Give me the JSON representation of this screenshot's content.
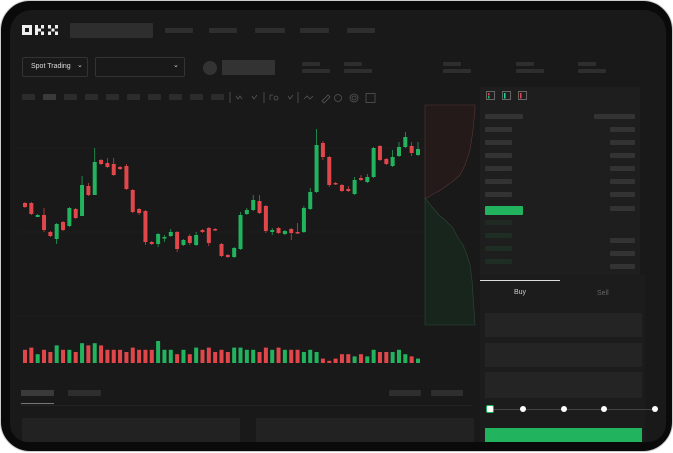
{
  "header": {
    "logo": "OKX"
  },
  "market_bar": {
    "mode_selector": "Spot Trading",
    "mode_chevron": "⌄",
    "pair_chevron": "⌄"
  },
  "orderbook": {
    "view_icons": [
      "both-sides-icon",
      "bids-only-icon",
      "asks-only-icon"
    ]
  },
  "trade_form": {
    "tabs": [
      {
        "label": "Buy",
        "active": true
      },
      {
        "label": "Sell",
        "active": false
      }
    ],
    "slider_percent": 0,
    "submit_color": "#22b35e"
  },
  "colors": {
    "up": "#22b35e",
    "down": "#e0474b",
    "background": "#191919"
  },
  "chart_data": {
    "type": "candlestick",
    "title": "",
    "ylim": [
      -30,
      195
    ],
    "grid": true,
    "candles": [
      [
        97,
        98,
        92,
        93
      ],
      [
        97,
        98,
        85,
        86
      ],
      [
        83,
        86,
        83,
        85
      ],
      [
        85,
        92,
        68,
        70
      ],
      [
        68,
        69,
        63,
        64
      ],
      [
        61,
        77,
        56,
        76
      ],
      [
        78,
        79,
        69,
        70
      ],
      [
        74,
        93,
        73,
        92
      ],
      [
        91,
        92,
        81,
        82
      ],
      [
        84,
        124,
        84,
        115
      ],
      [
        114,
        117,
        104,
        105
      ],
      [
        105,
        152,
        105,
        138
      ],
      [
        140,
        141,
        135,
        136
      ],
      [
        137,
        142,
        132,
        133
      ],
      [
        136,
        142,
        124,
        125
      ],
      [
        133,
        134,
        130,
        131
      ],
      [
        134,
        136,
        110,
        111
      ],
      [
        110,
        111,
        87,
        88
      ],
      [
        91,
        92,
        85,
        87
      ],
      [
        89,
        90,
        55,
        58
      ],
      [
        58,
        59,
        55,
        56
      ],
      [
        56,
        67,
        53,
        66
      ],
      [
        62,
        65,
        58,
        63
      ],
      [
        64,
        71,
        63,
        68
      ],
      [
        68,
        69,
        48,
        51
      ],
      [
        55,
        61,
        54,
        60
      ],
      [
        64,
        66,
        55,
        57
      ],
      [
        55,
        68,
        54,
        65
      ],
      [
        70,
        71,
        67,
        68
      ],
      [
        72,
        73,
        54,
        57
      ],
      [
        71,
        72,
        69,
        70
      ],
      [
        56,
        57,
        43,
        44
      ],
      [
        45,
        46,
        42,
        43
      ],
      [
        43,
        53,
        42,
        52
      ],
      [
        51,
        88,
        50,
        85
      ],
      [
        86,
        92,
        85,
        90
      ],
      [
        90,
        105,
        89,
        100
      ],
      [
        99,
        105,
        86,
        87
      ],
      [
        94,
        95,
        67,
        69
      ],
      [
        68,
        72,
        65,
        70
      ],
      [
        72,
        73,
        66,
        67
      ],
      [
        66,
        70,
        65,
        69
      ],
      [
        71,
        72,
        60,
        67
      ],
      [
        68,
        77,
        66,
        67
      ],
      [
        68,
        94,
        67,
        92
      ],
      [
        91,
        112,
        90,
        108
      ],
      [
        108,
        171,
        107,
        155
      ],
      [
        157,
        159,
        140,
        143
      ],
      [
        143,
        144,
        113,
        115
      ],
      [
        117,
        118,
        115,
        116
      ],
      [
        115,
        116,
        108,
        109
      ],
      [
        111,
        114,
        108,
        109
      ],
      [
        106,
        123,
        105,
        120
      ],
      [
        122,
        125,
        119,
        120
      ],
      [
        118,
        126,
        117,
        123
      ],
      [
        123,
        153,
        122,
        152
      ],
      [
        154,
        155,
        139,
        140
      ],
      [
        141,
        142,
        135,
        136
      ],
      [
        134,
        150,
        133,
        143
      ],
      [
        144,
        158,
        143,
        153
      ],
      [
        153,
        168,
        152,
        163
      ],
      [
        154,
        158,
        144,
        147
      ],
      [
        145,
        158,
        144,
        151
      ]
    ],
    "volume": [
      6,
      7,
      4,
      6,
      5,
      8,
      6,
      6,
      5,
      9,
      8,
      9,
      8,
      6,
      6,
      6,
      5,
      7,
      6,
      6,
      6,
      10,
      6,
      6,
      4,
      6,
      4,
      7,
      6,
      7,
      5,
      6,
      5,
      7,
      7,
      6,
      6,
      5,
      7,
      6,
      7,
      6,
      6,
      6,
      5,
      6,
      5,
      2,
      1,
      2,
      4,
      4,
      3,
      4,
      3,
      6,
      5,
      5,
      5,
      6,
      4,
      3,
      2
    ]
  }
}
